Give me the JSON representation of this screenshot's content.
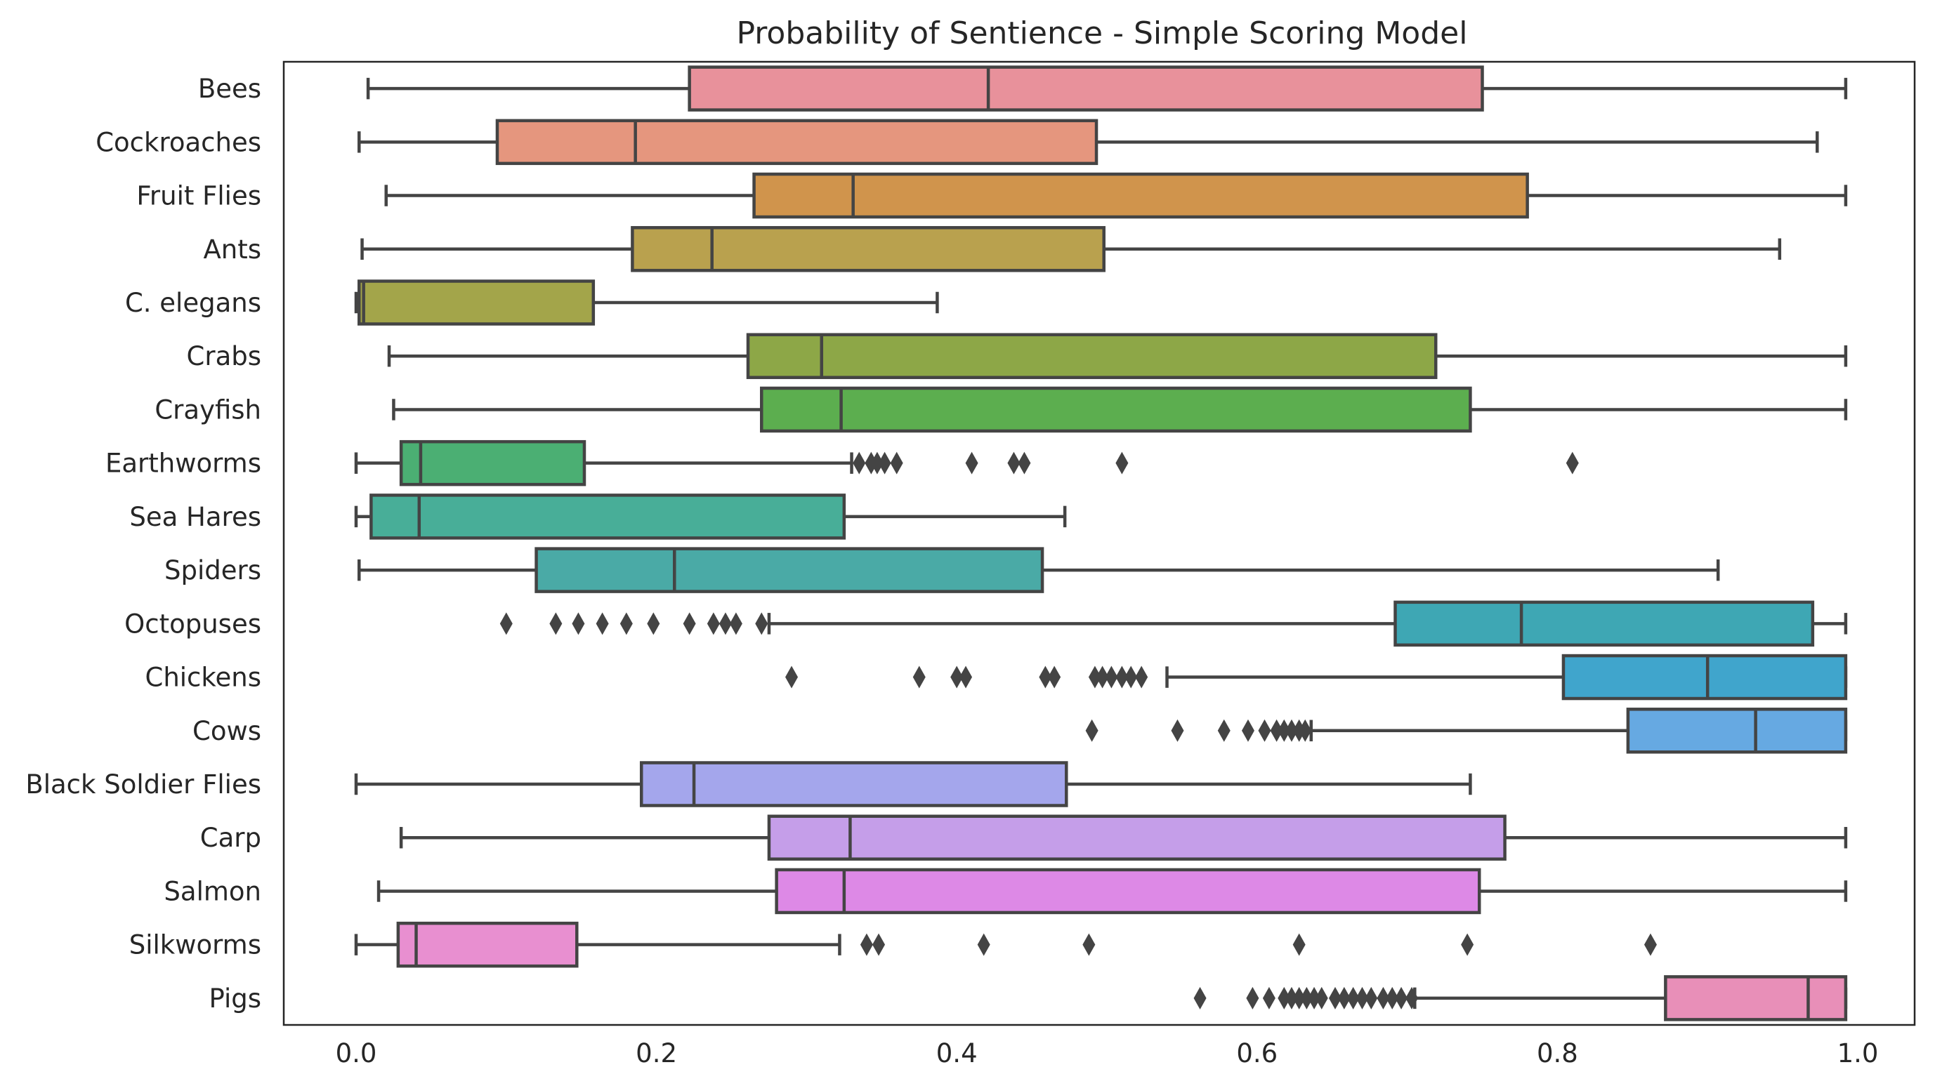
{
  "chart_data": {
    "type": "boxplot",
    "orientation": "horizontal",
    "title": "Probability of Sentience - Simple Scoring Model",
    "xlabel": "",
    "ylabel": "",
    "xlim": [
      -0.048,
      1.035
    ],
    "xticks": [
      "0.0",
      "0.2",
      "0.4",
      "0.6",
      "0.8",
      "1.0"
    ],
    "xtick_values": [
      0.0,
      0.2,
      0.4,
      0.6,
      0.8,
      1.0
    ],
    "grid": false,
    "categories": [
      "Bees",
      "Cockroaches",
      "Fruit Flies",
      "Ants",
      "C. elegans",
      "Crabs",
      "Crayfish",
      "Earthworms",
      "Sea Hares",
      "Spiders",
      "Octopuses",
      "Chickens",
      "Cows",
      "Black Soldier Flies",
      "Carp",
      "Salmon",
      "Silkworms",
      "Pigs"
    ],
    "series": [
      {
        "name": "Bees",
        "color": "#e8919b",
        "whisker_low": 0.008,
        "q1": 0.222,
        "median": 0.421,
        "q3": 0.75,
        "whisker_high": 0.992,
        "outliers": []
      },
      {
        "name": "Cockroaches",
        "color": "#e5967e",
        "whisker_low": 0.002,
        "q1": 0.094,
        "median": 0.186,
        "q3": 0.493,
        "whisker_high": 0.973,
        "outliers": []
      },
      {
        "name": "Fruit Flies",
        "color": "#d0944c",
        "whisker_low": 0.02,
        "q1": 0.265,
        "median": 0.331,
        "q3": 0.78,
        "whisker_high": 0.992,
        "outliers": []
      },
      {
        "name": "Ants",
        "color": "#b9a14e",
        "whisker_low": 0.004,
        "q1": 0.184,
        "median": 0.237,
        "q3": 0.498,
        "whisker_high": 0.948,
        "outliers": []
      },
      {
        "name": "C. elegans",
        "color": "#a3a54a",
        "whisker_low": 0.0,
        "q1": 0.002,
        "median": 0.005,
        "q3": 0.158,
        "whisker_high": 0.387,
        "outliers": []
      },
      {
        "name": "Crabs",
        "color": "#8da747",
        "whisker_low": 0.022,
        "q1": 0.261,
        "median": 0.31,
        "q3": 0.719,
        "whisker_high": 0.992,
        "outliers": []
      },
      {
        "name": "Crayfish",
        "color": "#5cae4f",
        "whisker_low": 0.025,
        "q1": 0.27,
        "median": 0.323,
        "q3": 0.742,
        "whisker_high": 0.992,
        "outliers": []
      },
      {
        "name": "Earthworms",
        "color": "#4baf73",
        "whisker_low": 0.0,
        "q1": 0.03,
        "median": 0.043,
        "q3": 0.152,
        "whisker_high": 0.33,
        "outliers": [
          0.335,
          0.343,
          0.347,
          0.352,
          0.36,
          0.41,
          0.438,
          0.445,
          0.51,
          0.81
        ]
      },
      {
        "name": "Sea Hares",
        "color": "#48ae98",
        "whisker_low": 0.0,
        "q1": 0.01,
        "median": 0.042,
        "q3": 0.325,
        "whisker_high": 0.472,
        "outliers": []
      },
      {
        "name": "Spiders",
        "color": "#4aaaa6",
        "whisker_low": 0.002,
        "q1": 0.12,
        "median": 0.212,
        "q3": 0.457,
        "whisker_high": 0.907,
        "outliers": []
      },
      {
        "name": "Octopuses",
        "color": "#3ea7b4",
        "whisker_low": 0.275,
        "q1": 0.692,
        "median": 0.776,
        "q3": 0.97,
        "whisker_high": 0.992,
        "outliers": [
          0.1,
          0.133,
          0.148,
          0.164,
          0.18,
          0.198,
          0.222,
          0.238,
          0.246,
          0.253,
          0.27
        ]
      },
      {
        "name": "Chickens",
        "color": "#40a5cc",
        "whisker_low": 0.54,
        "q1": 0.804,
        "median": 0.9,
        "q3": 0.992,
        "whisker_high": 0.992,
        "outliers": [
          0.29,
          0.375,
          0.4,
          0.406,
          0.459,
          0.465,
          0.492,
          0.497,
          0.503,
          0.51,
          0.516,
          0.523
        ]
      },
      {
        "name": "Cows",
        "color": "#66a9e2",
        "whisker_low": 0.636,
        "q1": 0.847,
        "median": 0.932,
        "q3": 0.992,
        "whisker_high": 0.992,
        "outliers": [
          0.49,
          0.547,
          0.578,
          0.594,
          0.605,
          0.613,
          0.618,
          0.623,
          0.628,
          0.632
        ]
      },
      {
        "name": "Black Soldier Flies",
        "color": "#a4a6ec",
        "whisker_low": 0.0,
        "q1": 0.19,
        "median": 0.225,
        "q3": 0.473,
        "whisker_high": 0.742,
        "outliers": []
      },
      {
        "name": "Carp",
        "color": "#c59ee9",
        "whisker_low": 0.03,
        "q1": 0.275,
        "median": 0.329,
        "q3": 0.765,
        "whisker_high": 0.992,
        "outliers": []
      },
      {
        "name": "Salmon",
        "color": "#dd89e6",
        "whisker_low": 0.015,
        "q1": 0.28,
        "median": 0.325,
        "q3": 0.748,
        "whisker_high": 0.992,
        "outliers": []
      },
      {
        "name": "Silkworms",
        "color": "#e88fd0",
        "whisker_low": 0.0,
        "q1": 0.028,
        "median": 0.04,
        "q3": 0.147,
        "whisker_high": 0.322,
        "outliers": [
          0.34,
          0.348,
          0.418,
          0.488,
          0.628,
          0.74,
          0.862
        ]
      },
      {
        "name": "Pigs",
        "color": "#e88fb8",
        "whisker_low": 0.705,
        "q1": 0.872,
        "median": 0.967,
        "q3": 0.992,
        "whisker_high": 0.992,
        "outliers": [
          0.562,
          0.597,
          0.608,
          0.618,
          0.623,
          0.628,
          0.633,
          0.638,
          0.643,
          0.652,
          0.658,
          0.664,
          0.67,
          0.676,
          0.684,
          0.69,
          0.696,
          0.703
        ]
      }
    ]
  }
}
